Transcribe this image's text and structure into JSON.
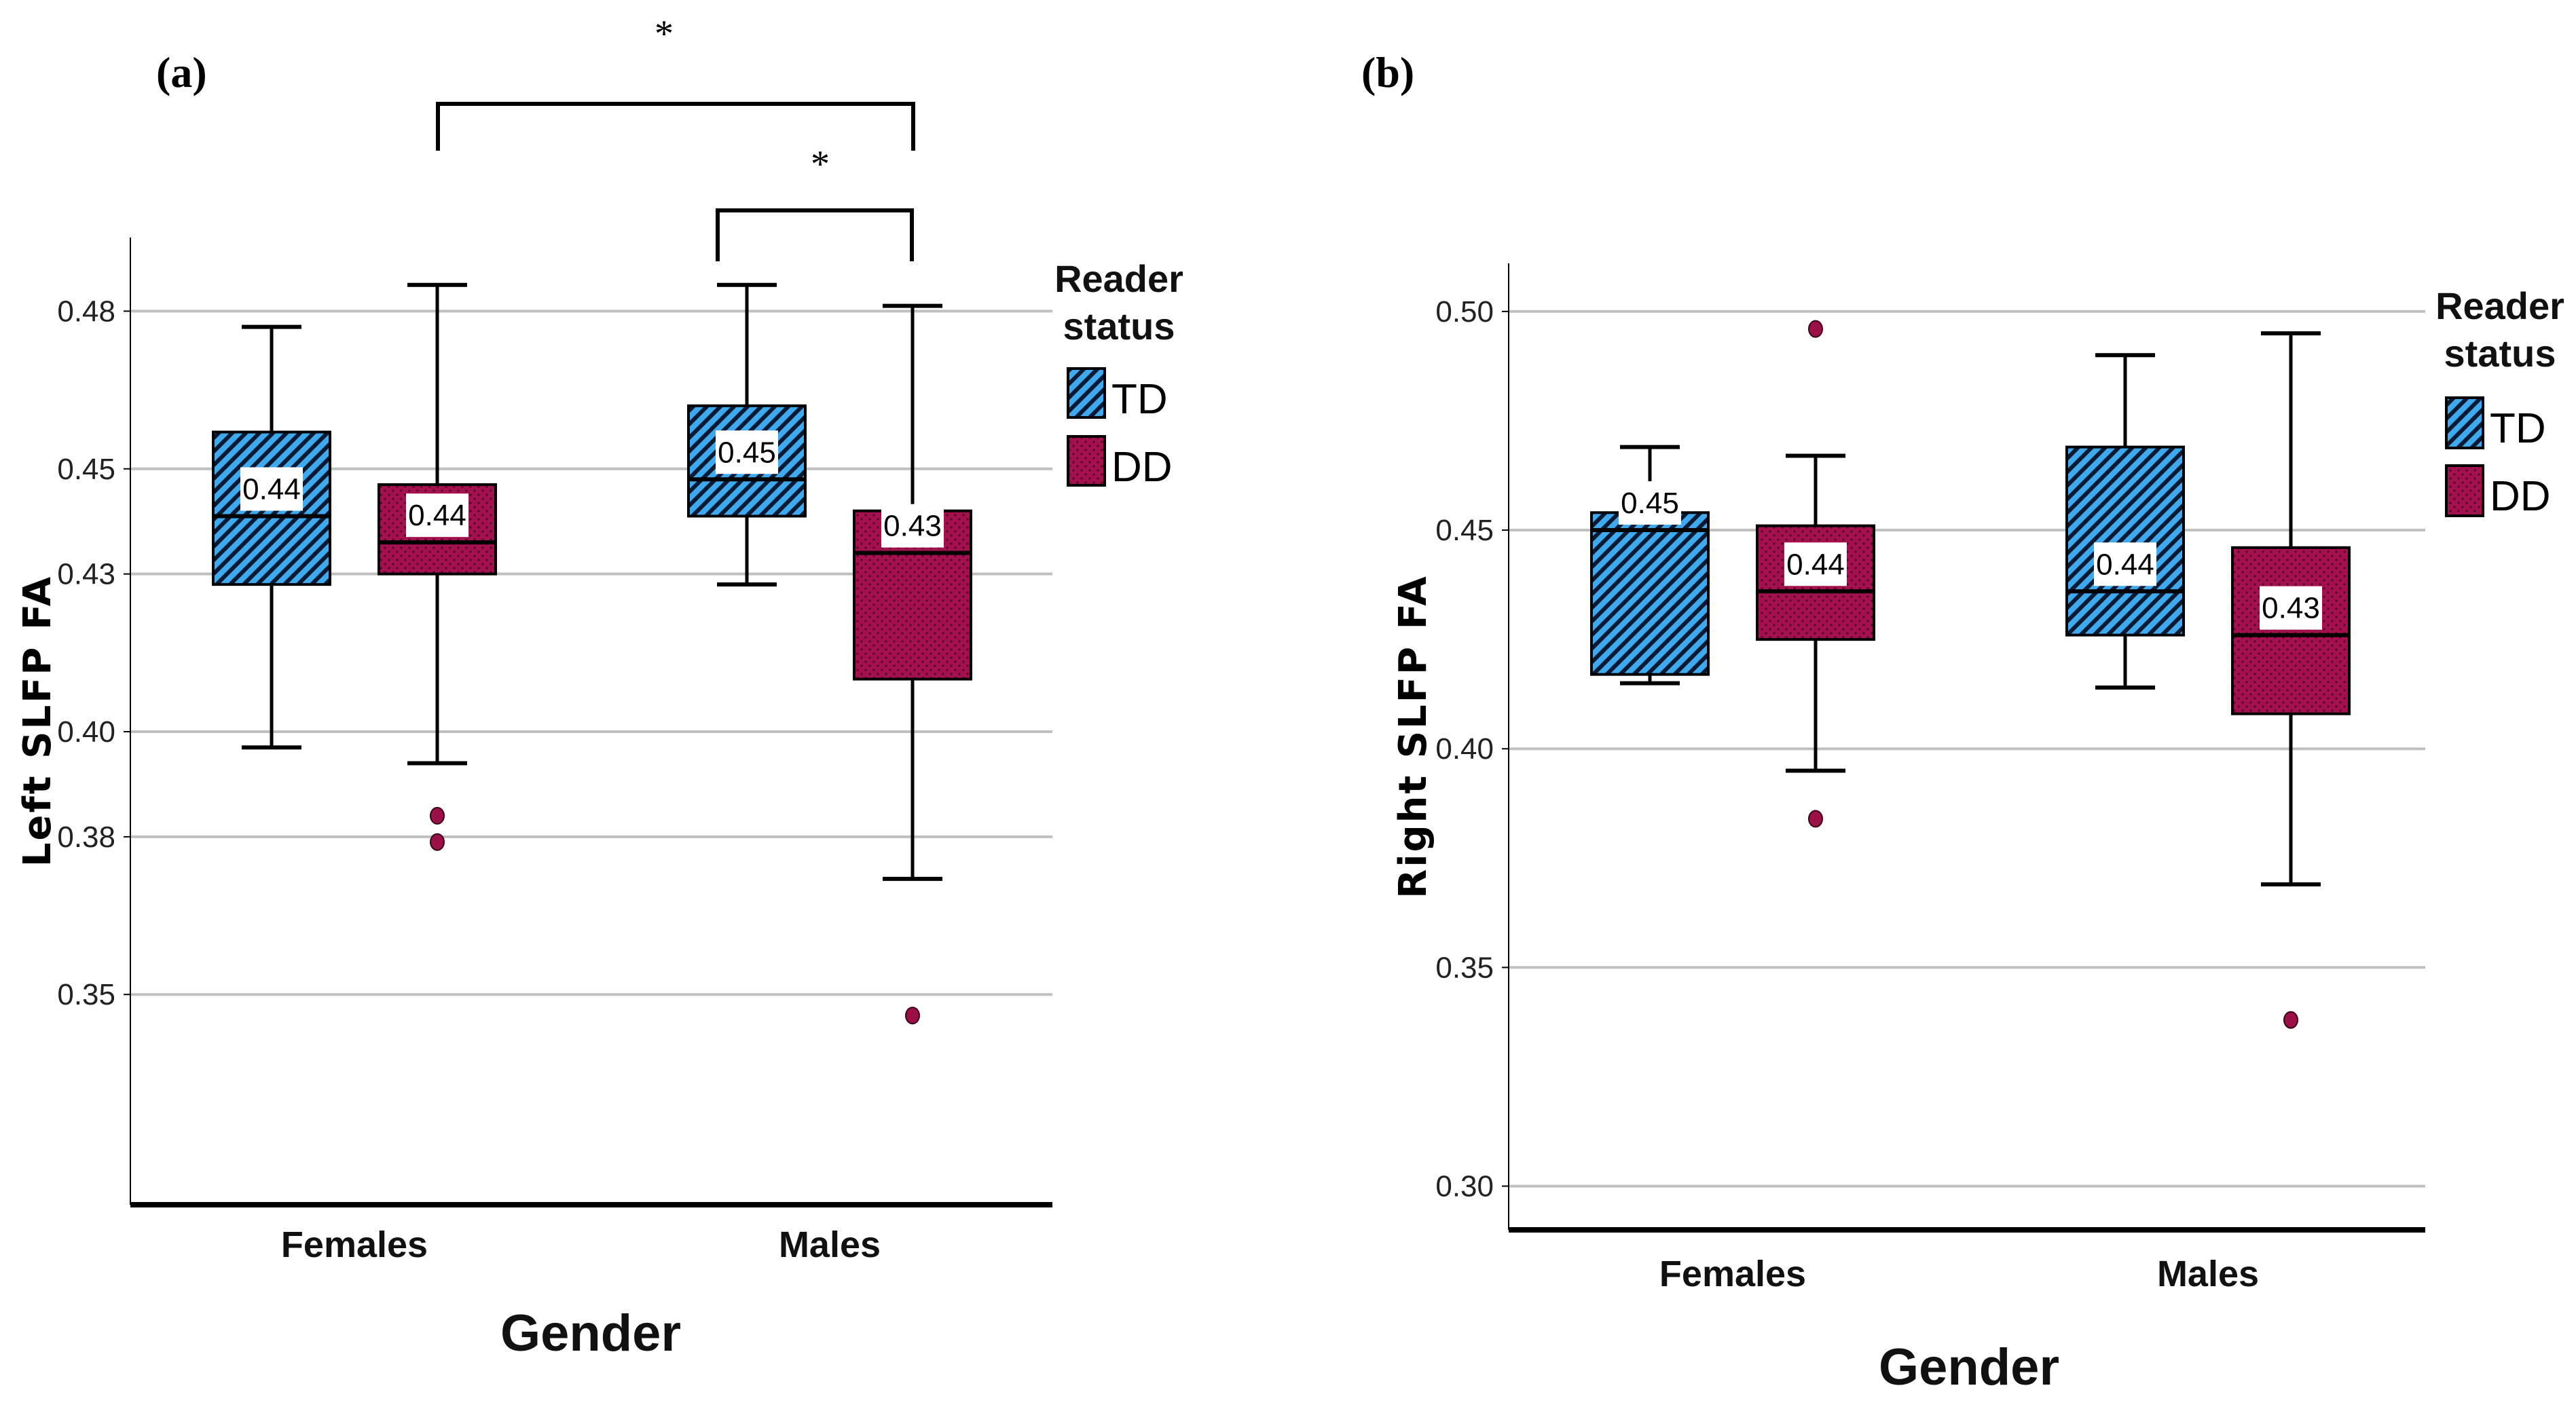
{
  "colors": {
    "td": "#3fa9f0",
    "dd": "#a5104e",
    "outlier": "#9b1048",
    "grid": "#c0c0c0"
  },
  "chart_data": [
    {
      "type": "box",
      "panel_label": "(a)",
      "xlabel": "Gender",
      "ylabel": "Left SLFP FA",
      "ylim": [
        0.31,
        0.494
      ],
      "yticks": [
        0.35,
        0.38,
        0.4,
        0.43,
        0.45,
        0.48
      ],
      "ytick_labels": [
        "0.35",
        "0.38",
        "0.40",
        "0.43",
        "0.45",
        "0.48"
      ],
      "categories": [
        "Females",
        "Males"
      ],
      "legend": {
        "title_lines": [
          "Reader",
          "status"
        ],
        "entries": [
          "TD",
          "DD"
        ],
        "position": "right"
      },
      "series": [
        {
          "name": "TD",
          "boxes": [
            {
              "min": 0.397,
              "q1": 0.428,
              "median": 0.441,
              "q3": 0.457,
              "max": 0.477,
              "label": "0.44",
              "outliers": []
            },
            {
              "min": 0.428,
              "q1": 0.441,
              "median": 0.448,
              "q3": 0.462,
              "max": 0.485,
              "label": "0.45",
              "outliers": []
            }
          ]
        },
        {
          "name": "DD",
          "boxes": [
            {
              "min": 0.394,
              "q1": 0.43,
              "median": 0.436,
              "q3": 0.447,
              "max": 0.485,
              "label": "0.44",
              "outliers": [
                0.384,
                0.379
              ]
            },
            {
              "min": 0.372,
              "q1": 0.41,
              "median": 0.434,
              "q3": 0.442,
              "max": 0.481,
              "label": "0.43",
              "outliers": [
                0.346
              ]
            }
          ]
        }
      ],
      "annotations": [
        "*",
        "*"
      ]
    },
    {
      "type": "box",
      "panel_label": "(b)",
      "xlabel": "Gender",
      "ylabel": "Right SLFP FA",
      "ylim": [
        0.29,
        0.511
      ],
      "yticks": [
        0.3,
        0.35,
        0.4,
        0.45,
        0.5
      ],
      "ytick_labels": [
        "0.30",
        "0.35",
        "0.40",
        "0.45",
        "0.50"
      ],
      "categories": [
        "Females",
        "Males"
      ],
      "legend": {
        "title_lines": [
          "Reader",
          "status"
        ],
        "entries": [
          "TD",
          "DD"
        ],
        "position": "right"
      },
      "series": [
        {
          "name": "TD",
          "boxes": [
            {
              "min": 0.415,
              "q1": 0.417,
              "median": 0.45,
              "q3": 0.454,
              "max": 0.469,
              "label": "0.45",
              "outliers": []
            },
            {
              "min": 0.414,
              "q1": 0.426,
              "median": 0.436,
              "q3": 0.469,
              "max": 0.49,
              "label": "0.44",
              "outliers": []
            }
          ]
        },
        {
          "name": "DD",
          "boxes": [
            {
              "min": 0.395,
              "q1": 0.425,
              "median": 0.436,
              "q3": 0.451,
              "max": 0.467,
              "label": "0.44",
              "outliers": [
                0.496,
                0.384
              ]
            },
            {
              "min": 0.369,
              "q1": 0.408,
              "median": 0.426,
              "q3": 0.446,
              "max": 0.495,
              "label": "0.43",
              "outliers": [
                0.338
              ]
            }
          ]
        }
      ],
      "annotations": []
    }
  ]
}
